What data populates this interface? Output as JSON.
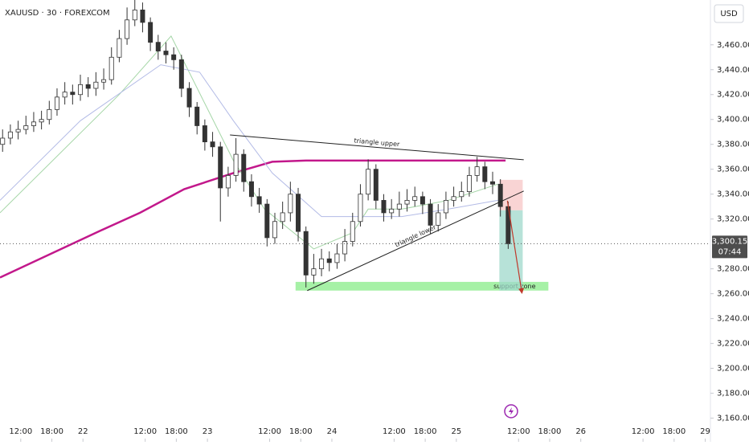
{
  "chart_data": {
    "type": "candlestick",
    "title": "XAUUSD · 30 · FOREXCOM",
    "currency": "USD",
    "ylim": [
      3141,
      3496
    ],
    "xlim": [
      0,
      274
    ],
    "yticks": [
      {
        "value": 3160,
        "label": "3,160.00"
      },
      {
        "value": 3180,
        "label": "3,180.00"
      },
      {
        "value": 3200,
        "label": "3,200.00"
      },
      {
        "value": 3220,
        "label": "3,220.00"
      },
      {
        "value": 3240,
        "label": "3,240.00"
      },
      {
        "value": 3260,
        "label": "3,260.00"
      },
      {
        "value": 3280,
        "label": "3,280.00"
      },
      {
        "value": 3320,
        "label": "3,320.00"
      },
      {
        "value": 3340,
        "label": "3,340.00"
      },
      {
        "value": 3360,
        "label": "3,360.00"
      },
      {
        "value": 3380,
        "label": "3,380.00"
      },
      {
        "value": 3400,
        "label": "3,400.00"
      },
      {
        "value": 3420,
        "label": "3,420.00"
      },
      {
        "value": 3440,
        "label": "3,440.00"
      },
      {
        "value": 3460,
        "label": "3,460.00"
      }
    ],
    "xticks": [
      {
        "value": 8,
        "label": "12:00"
      },
      {
        "value": 20,
        "label": "18:00"
      },
      {
        "value": 32,
        "label": "22"
      },
      {
        "value": 56,
        "label": "12:00"
      },
      {
        "value": 68,
        "label": "18:00"
      },
      {
        "value": 80,
        "label": "23"
      },
      {
        "value": 104,
        "label": "12:00"
      },
      {
        "value": 116,
        "label": "18:00"
      },
      {
        "value": 128,
        "label": "24"
      },
      {
        "value": 152,
        "label": "12:00"
      },
      {
        "value": 164,
        "label": "18:00"
      },
      {
        "value": 176,
        "label": "25"
      },
      {
        "value": 200,
        "label": "12:00"
      },
      {
        "value": 212,
        "label": "18:00"
      },
      {
        "value": 224,
        "label": "26"
      },
      {
        "value": 248,
        "label": "12:00"
      },
      {
        "value": 260,
        "label": "18:00"
      },
      {
        "value": 272,
        "label": "29"
      }
    ],
    "up_color": "#ffffff",
    "down_color": "#333333",
    "wick_color": "#333333",
    "x": [
      1,
      4,
      7,
      10,
      13,
      16,
      19,
      22,
      25,
      28,
      31,
      34,
      37,
      40,
      43,
      46,
      49,
      52,
      55,
      58,
      61,
      64,
      67,
      70,
      73,
      76,
      79,
      82,
      85,
      88,
      91,
      94,
      97,
      100,
      103,
      106,
      109,
      112,
      115,
      118,
      121,
      124,
      127,
      130,
      133,
      136,
      139,
      142,
      145,
      148,
      151,
      154,
      157,
      160,
      163,
      166,
      169,
      172,
      175,
      178,
      181,
      184,
      187,
      190,
      193,
      196
    ],
    "open": [
      3380,
      3385,
      3390,
      3392,
      3395,
      3398,
      3400,
      3408,
      3418,
      3422,
      3420,
      3428,
      3425,
      3430,
      3432,
      3450,
      3465,
      3480,
      3488,
      3478,
      3462,
      3455,
      3452,
      3448,
      3425,
      3410,
      3395,
      3382,
      3378,
      3345,
      3355,
      3372,
      3350,
      3338,
      3332,
      3305,
      3318,
      3325,
      3340,
      3310,
      3275,
      3280,
      3288,
      3285,
      3292,
      3302,
      3318,
      3340,
      3360,
      3335,
      3325,
      3328,
      3332,
      3335,
      3338,
      3332,
      3315,
      3325,
      3335,
      3338,
      3342,
      3355,
      3362,
      3350,
      3348,
      3330
    ],
    "high": [
      3392,
      3396,
      3399,
      3403,
      3406,
      3407,
      3415,
      3425,
      3430,
      3428,
      3436,
      3434,
      3438,
      3441,
      3458,
      3472,
      3490,
      3496,
      3494,
      3482,
      3468,
      3462,
      3458,
      3452,
      3430,
      3414,
      3400,
      3390,
      3382,
      3362,
      3385,
      3376,
      3356,
      3345,
      3336,
      3325,
      3334,
      3350,
      3345,
      3314,
      3292,
      3296,
      3294,
      3300,
      3312,
      3325,
      3348,
      3368,
      3364,
      3340,
      3336,
      3342,
      3344,
      3346,
      3342,
      3336,
      3332,
      3342,
      3346,
      3350,
      3362,
      3370,
      3366,
      3358,
      3352,
      3334
    ],
    "low": [
      3374,
      3380,
      3384,
      3388,
      3390,
      3392,
      3396,
      3403,
      3412,
      3412,
      3415,
      3418,
      3419,
      3424,
      3428,
      3446,
      3460,
      3475,
      3470,
      3455,
      3448,
      3445,
      3440,
      3418,
      3402,
      3388,
      3375,
      3370,
      3318,
      3338,
      3350,
      3342,
      3330,
      3325,
      3298,
      3300,
      3312,
      3318,
      3302,
      3265,
      3268,
      3274,
      3278,
      3280,
      3286,
      3298,
      3314,
      3335,
      3328,
      3318,
      3320,
      3322,
      3326,
      3330,
      3324,
      3308,
      3310,
      3320,
      3330,
      3334,
      3338,
      3350,
      3344,
      3340,
      3322,
      3296
    ],
    "close": [
      3385,
      3390,
      3392,
      3395,
      3398,
      3400,
      3408,
      3418,
      3422,
      3420,
      3428,
      3425,
      3430,
      3432,
      3450,
      3465,
      3480,
      3488,
      3478,
      3462,
      3455,
      3452,
      3448,
      3425,
      3410,
      3395,
      3382,
      3378,
      3345,
      3355,
      3372,
      3350,
      3338,
      3332,
      3305,
      3318,
      3325,
      3340,
      3310,
      3275,
      3280,
      3288,
      3285,
      3292,
      3302,
      3318,
      3340,
      3360,
      3335,
      3325,
      3328,
      3332,
      3335,
      3338,
      3332,
      3315,
      3325,
      3335,
      3338,
      3342,
      3355,
      3362,
      3350,
      3348,
      3330,
      3300.15
    ],
    "overlays": [
      {
        "color": "#c2188b",
        "width": 2.5,
        "x": [
          0,
          37,
          54,
          71,
          90,
          105,
          118,
          155,
          195
        ],
        "values": [
          3273,
          3309,
          3325,
          3344,
          3357,
          3366,
          3367,
          3367,
          3367
        ]
      },
      {
        "color": "#a5d6a7",
        "width": 1,
        "x": [
          0,
          46,
          66,
          90,
          102,
          121,
          136,
          142,
          155,
          173,
          192
        ],
        "values": [
          3325,
          3420,
          3467,
          3367,
          3328,
          3296,
          3309,
          3328,
          3328,
          3335,
          3348
        ]
      },
      {
        "color": "#b3bbe6",
        "width": 1,
        "x": [
          0,
          31,
          62,
          77,
          90,
          105,
          124,
          139,
          155,
          173,
          192
        ],
        "values": [
          3335,
          3399,
          3444,
          3438,
          3399,
          3357,
          3322,
          3322,
          3322,
          3328,
          3335
        ]
      }
    ],
    "trendlines": [
      {
        "label": "triangle upper",
        "x": [
          88.7,
          202
        ],
        "y": [
          3387.6,
          3367.6
        ]
      },
      {
        "label": "triangle lower",
        "x": [
          118.5,
          202
        ],
        "y": [
          3262.5,
          3342.5
        ]
      }
    ],
    "zone": {
      "label": "support zone",
      "x": [
        114,
        211.5
      ],
      "y": [
        3262.5,
        3269.5
      ],
      "color": "#90ee90"
    },
    "position": {
      "x": [
        192.6,
        201.6
      ],
      "entry": 3327,
      "stop": 3351.5,
      "target": 3262.5
    },
    "arrow": {
      "x": [
        195.7,
        201.3
      ],
      "y": [
        3334.7,
        3260.5
      ],
      "color": "#c0392b"
    },
    "last_price": {
      "value": 3300.15,
      "label": "3,300.15"
    },
    "countdown": "07:44"
  }
}
